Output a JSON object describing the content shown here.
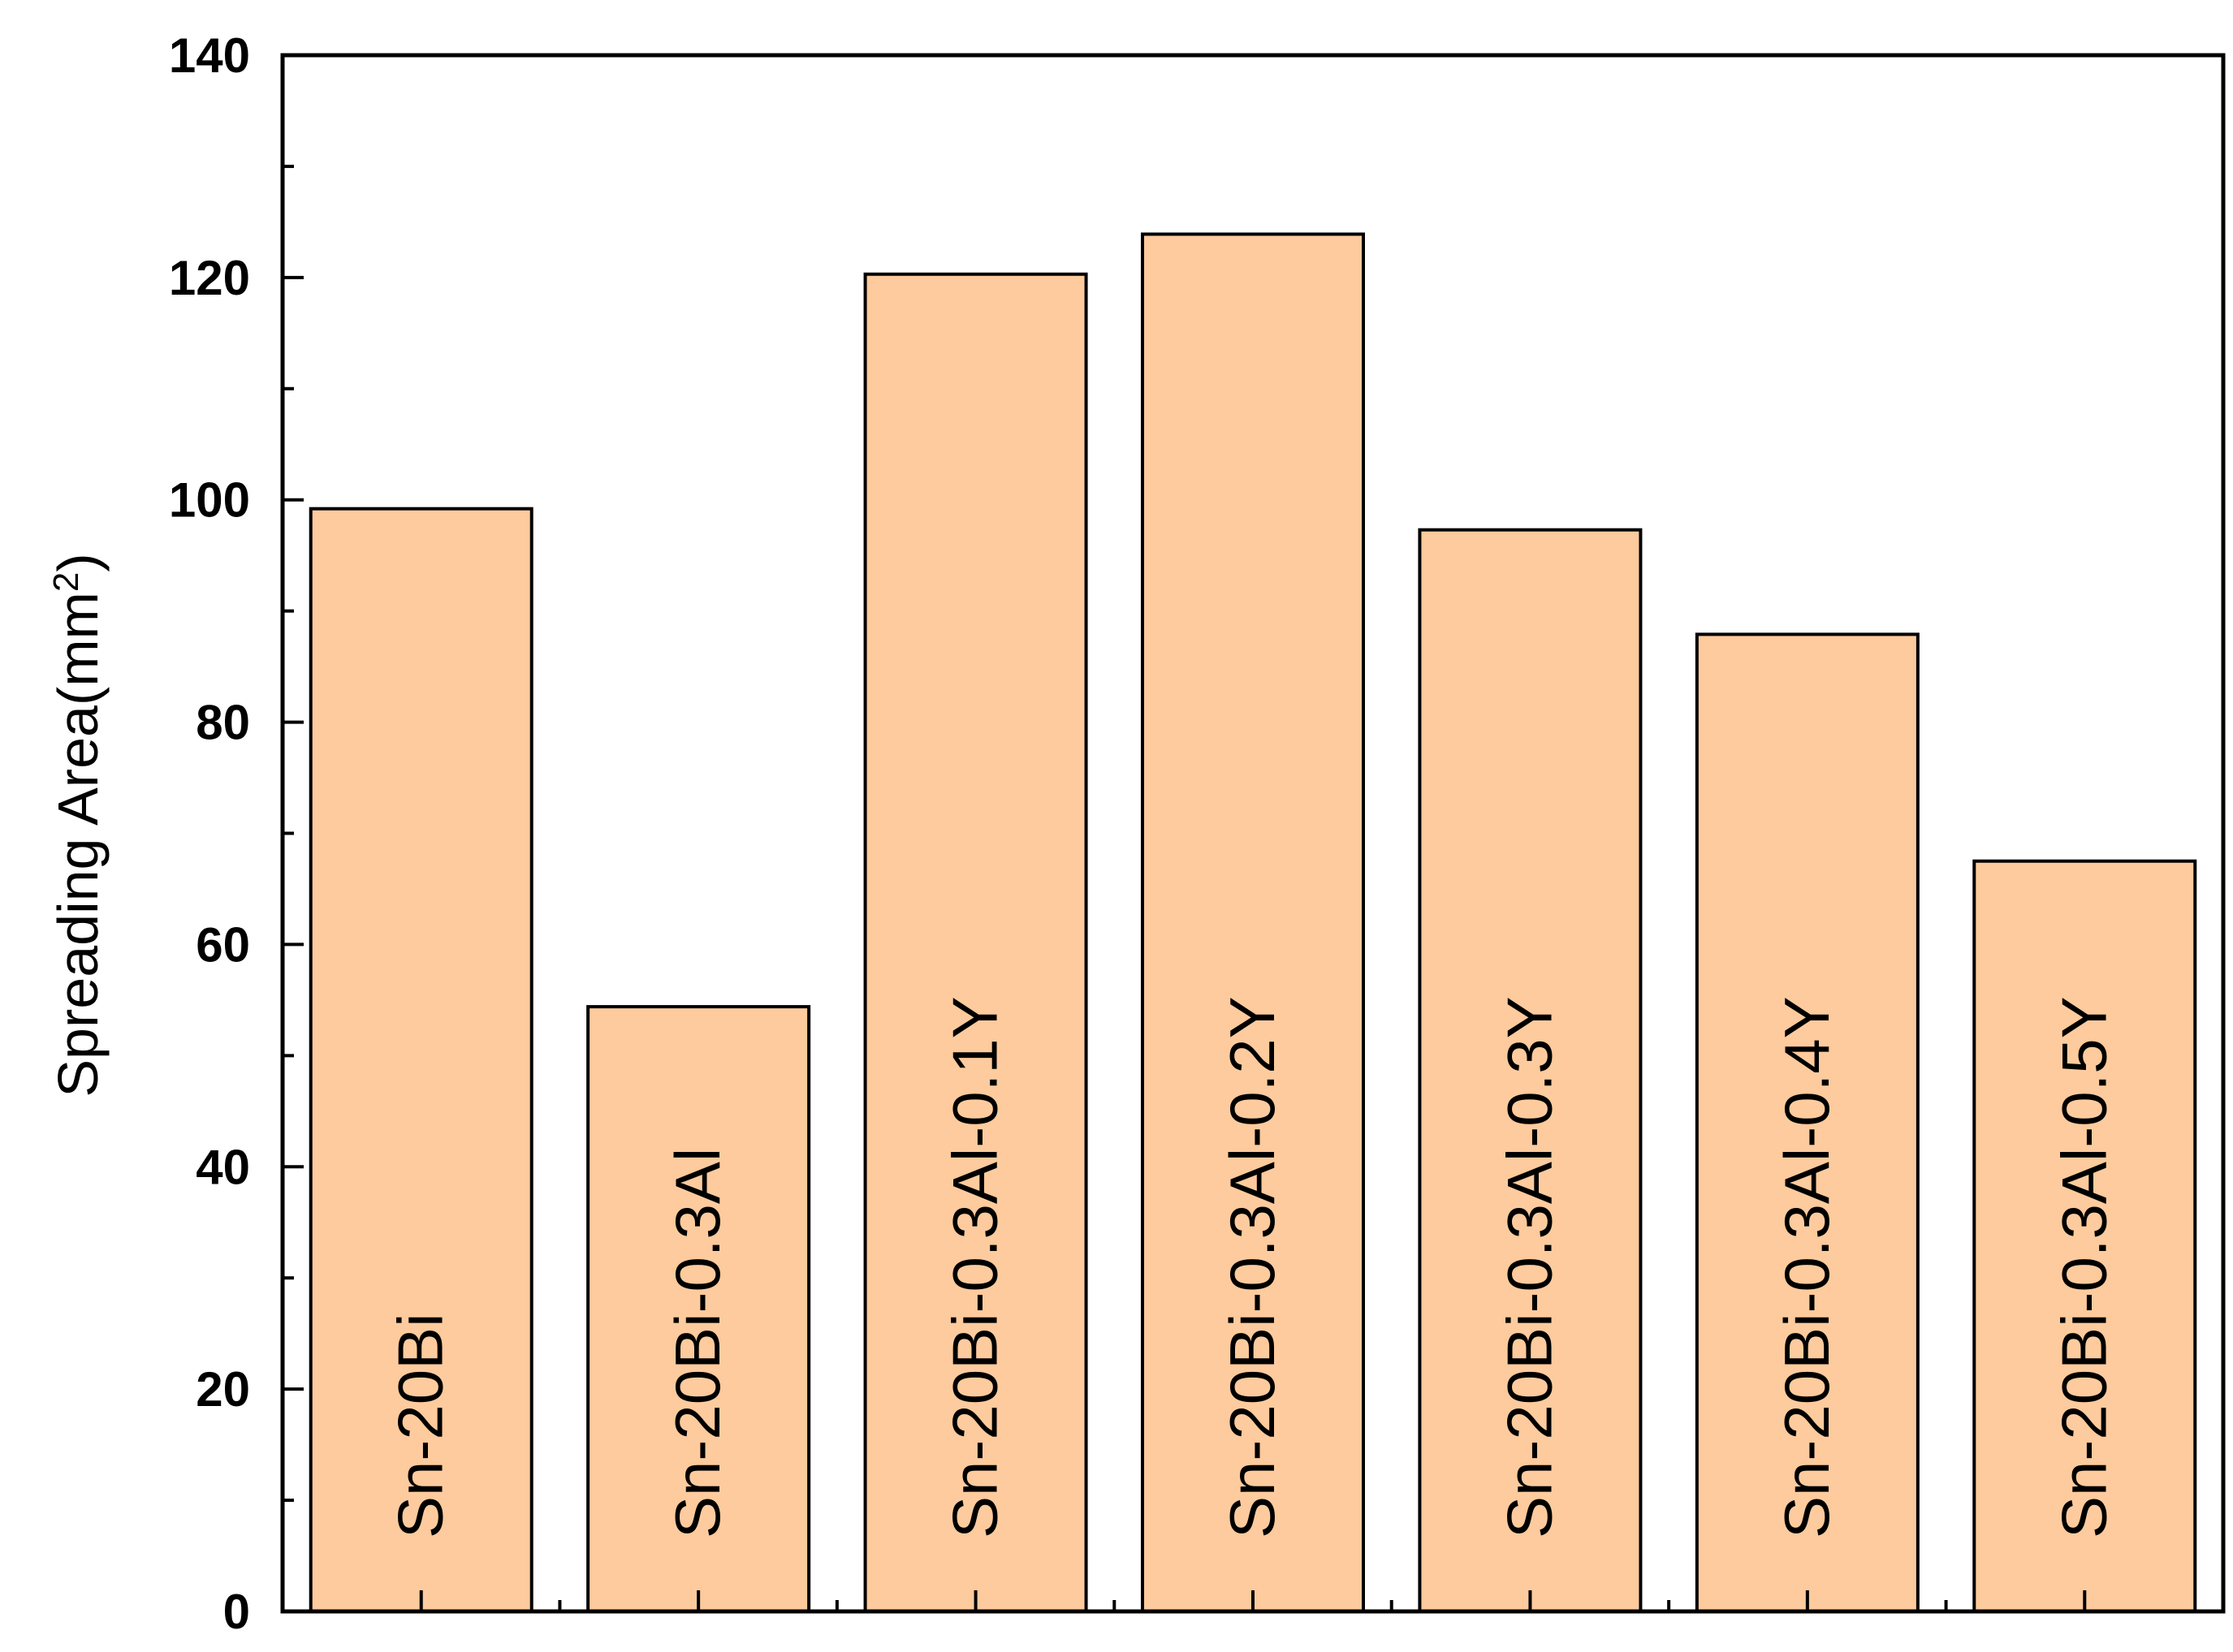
{
  "chart_data": {
    "type": "bar",
    "categories": [
      "Sn-20Bi",
      "Sn-20Bi-0.3Al",
      "Sn-20Bi-0.3Al-0.1Y",
      "Sn-20Bi-0.3Al-0.2Y",
      "Sn-20Bi-0.3Al-0.3Y",
      "Sn-20Bi-0.3Al-0.4Y",
      "Sn-20Bi-0.3Al-0.5Y"
    ],
    "values": [
      99.2,
      54.4,
      120.3,
      123.9,
      97.3,
      87.9,
      67.5
    ],
    "title": "",
    "xlabel": "",
    "ylabel": "Spreading Area(mm",
    "ylabel_superscript": "2",
    "ylabel_close": ")",
    "ylim": [
      0,
      140
    ],
    "yticks": [
      0,
      20,
      40,
      60,
      80,
      100,
      120,
      140
    ],
    "grid": false,
    "legend": "none",
    "bar_color": "#FDCB9D",
    "bar_stroke": "#000000",
    "category_labels_inside_bars": true
  }
}
